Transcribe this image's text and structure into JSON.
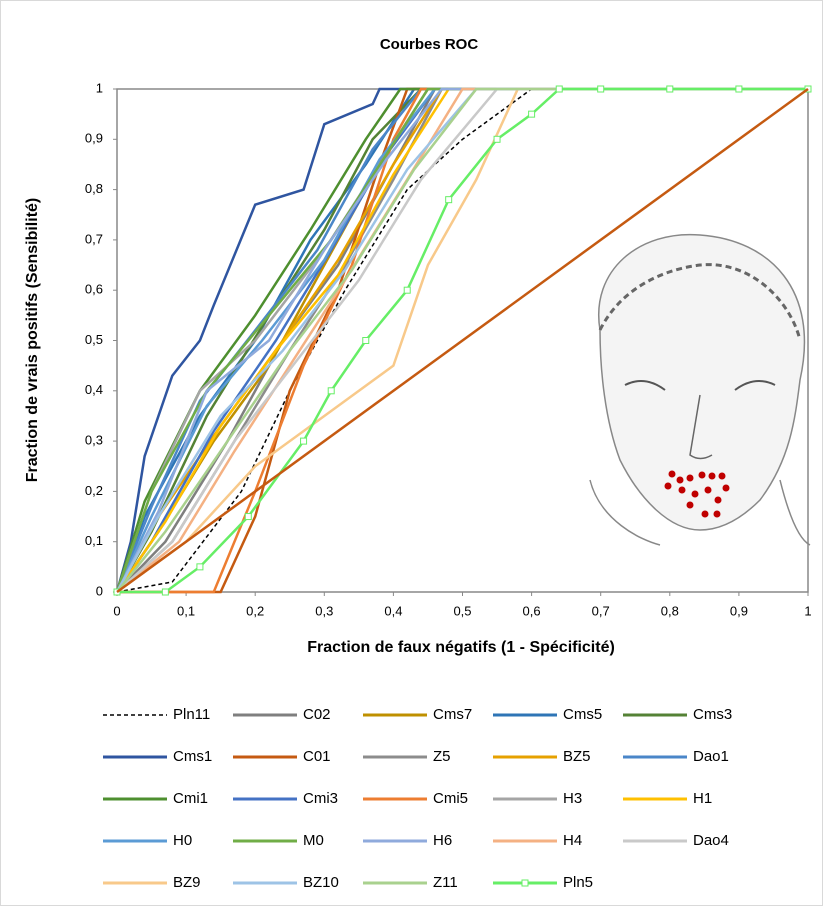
{
  "chart_data": {
    "type": "line",
    "title": "Courbes ROC",
    "xlabel": "Fraction de faux négatifs (1 - Spécificité)",
    "ylabel": "Fraction de vrais positifs (Sensibilité)",
    "xlim": [
      0,
      1
    ],
    "ylim": [
      0,
      1
    ],
    "xticks": [
      0,
      {
        "value": 0.1,
        "label": "0,1"
      },
      {
        "value": 0.2,
        "label": "0,2"
      },
      {
        "value": 0.3,
        "label": "0,3"
      },
      {
        "value": 0.4,
        "label": "0,4"
      },
      {
        "value": 0.5,
        "label": "0,5"
      },
      {
        "value": 0.6,
        "label": "0,6"
      },
      {
        "value": 0.7,
        "label": "0,7"
      },
      {
        "value": 0.8,
        "label": "0,8"
      },
      {
        "value": 0.9,
        "label": "0,9"
      },
      1
    ],
    "yticks": [
      0,
      {
        "value": 0.1,
        "label": "0,1"
      },
      {
        "value": 0.2,
        "label": "0,2"
      },
      {
        "value": 0.3,
        "label": "0,3"
      },
      {
        "value": 0.4,
        "label": "0,4"
      },
      {
        "value": 0.5,
        "label": "0,5"
      },
      {
        "value": 0.6,
        "label": "0,6"
      },
      {
        "value": 0.7,
        "label": "0,7"
      },
      {
        "value": 0.8,
        "label": "0,8"
      },
      {
        "value": 0.9,
        "label": "0,9"
      },
      1
    ],
    "reference_line": {
      "x": [
        0,
        1
      ],
      "values": [
        0,
        1
      ],
      "color": "#c55a11"
    },
    "series": [
      {
        "name": "Pln11",
        "color": "#000000",
        "style": "dashed",
        "x": [
          0,
          0.08,
          0.18,
          0.25,
          0.33,
          0.42,
          0.5,
          0.6,
          1
        ],
        "values": [
          0,
          0.02,
          0.2,
          0.4,
          0.6,
          0.8,
          0.9,
          1,
          1
        ]
      },
      {
        "name": "C02",
        "color": "#7f7f7f",
        "x": [
          0,
          0.07,
          0.16,
          0.24,
          0.32,
          0.4,
          0.46,
          1
        ],
        "values": [
          0,
          0.1,
          0.3,
          0.5,
          0.65,
          0.85,
          1,
          1
        ]
      },
      {
        "name": "Cms7",
        "color": "#bf9000",
        "x": [
          0,
          0.06,
          0.14,
          0.22,
          0.3,
          0.38,
          0.45,
          1
        ],
        "values": [
          0,
          0.12,
          0.3,
          0.45,
          0.65,
          0.85,
          1,
          1
        ]
      },
      {
        "name": "Cms5",
        "color": "#2e75b6",
        "x": [
          0,
          0.04,
          0.12,
          0.2,
          0.28,
          0.36,
          0.43,
          1
        ],
        "values": [
          0,
          0.15,
          0.35,
          0.5,
          0.7,
          0.85,
          1,
          1
        ]
      },
      {
        "name": "Cms3",
        "color": "#548235",
        "x": [
          0,
          0.05,
          0.13,
          0.22,
          0.3,
          0.37,
          0.44,
          1
        ],
        "values": [
          0,
          0.12,
          0.35,
          0.55,
          0.72,
          0.9,
          1,
          1
        ]
      },
      {
        "name": "Cms1",
        "color": "#2f55a0",
        "x": [
          0,
          0.02,
          0.04,
          0.08,
          0.12,
          0.14,
          0.2,
          0.27,
          0.3,
          0.37,
          0.38,
          1
        ],
        "values": [
          0,
          0.1,
          0.27,
          0.43,
          0.5,
          0.57,
          0.77,
          0.8,
          0.93,
          0.97,
          1,
          1
        ]
      },
      {
        "name": "C01",
        "color": "#c55a11",
        "x": [
          0,
          0.15,
          0.2,
          0.25,
          0.32,
          0.38,
          0.42,
          1
        ],
        "values": [
          0,
          0,
          0.15,
          0.4,
          0.6,
          0.85,
          1,
          1
        ]
      },
      {
        "name": "Z5",
        "color": "#8c8c8c",
        "x": [
          0,
          0.08,
          0.17,
          0.25,
          0.33,
          0.4,
          0.47,
          1
        ],
        "values": [
          0,
          0.1,
          0.3,
          0.48,
          0.65,
          0.82,
          1,
          1
        ]
      },
      {
        "name": "BZ5",
        "color": "#e6a100",
        "x": [
          0,
          0.06,
          0.15,
          0.24,
          0.32,
          0.4,
          0.47,
          1
        ],
        "values": [
          0,
          0.15,
          0.33,
          0.5,
          0.66,
          0.85,
          1,
          1
        ]
      },
      {
        "name": "Dao1",
        "color": "#4a86c8",
        "x": [
          0,
          0.05,
          0.12,
          0.2,
          0.29,
          0.37,
          0.44,
          1
        ],
        "values": [
          0,
          0.17,
          0.38,
          0.52,
          0.68,
          0.88,
          1,
          1
        ]
      },
      {
        "name": "Cmi1",
        "color": "#4e8f2f",
        "x": [
          0,
          0.04,
          0.12,
          0.2,
          0.28,
          0.36,
          0.41,
          1
        ],
        "values": [
          0,
          0.18,
          0.4,
          0.55,
          0.72,
          0.9,
          1,
          1
        ]
      },
      {
        "name": "Cmi3",
        "color": "#4472c4",
        "x": [
          0,
          0.05,
          0.14,
          0.23,
          0.31,
          0.39,
          0.46,
          1
        ],
        "values": [
          0,
          0.1,
          0.32,
          0.5,
          0.68,
          0.87,
          1,
          1
        ]
      },
      {
        "name": "Cmi5",
        "color": "#ed7d31",
        "x": [
          0,
          0.14,
          0.2,
          0.27,
          0.34,
          0.4,
          0.44,
          1
        ],
        "values": [
          0,
          0,
          0.2,
          0.45,
          0.65,
          0.9,
          1,
          1
        ]
      },
      {
        "name": "H3",
        "color": "#a5a5a5",
        "x": [
          0,
          0.05,
          0.12,
          0.2,
          0.3,
          0.38,
          0.45,
          1
        ],
        "values": [
          0,
          0.2,
          0.4,
          0.5,
          0.68,
          0.85,
          1,
          1
        ]
      },
      {
        "name": "H1",
        "color": "#ffc000",
        "x": [
          0,
          0.07,
          0.15,
          0.23,
          0.32,
          0.4,
          0.48,
          1
        ],
        "values": [
          0,
          0.14,
          0.33,
          0.48,
          0.63,
          0.83,
          1,
          1
        ]
      },
      {
        "name": "H0",
        "color": "#5b9bd5",
        "x": [
          0,
          0.05,
          0.13,
          0.21,
          0.3,
          0.38,
          0.46,
          1
        ],
        "values": [
          0,
          0.15,
          0.37,
          0.5,
          0.66,
          0.86,
          1,
          1
        ]
      },
      {
        "name": "M0",
        "color": "#70ad47",
        "x": [
          0,
          0.05,
          0.13,
          0.22,
          0.31,
          0.39,
          0.45,
          1
        ],
        "values": [
          0,
          0.2,
          0.4,
          0.55,
          0.7,
          0.87,
          1,
          1
        ]
      },
      {
        "name": "H6",
        "color": "#8faadc",
        "x": [
          0,
          0.06,
          0.13,
          0.22,
          0.3,
          0.39,
          0.47,
          1
        ],
        "values": [
          0,
          0.16,
          0.4,
          0.5,
          0.68,
          0.86,
          1,
          1
        ]
      },
      {
        "name": "H4",
        "color": "#f4b183",
        "x": [
          0,
          0.09,
          0.17,
          0.25,
          0.33,
          0.42,
          0.5,
          1
        ],
        "values": [
          0,
          0.1,
          0.28,
          0.45,
          0.62,
          0.82,
          1,
          1
        ]
      },
      {
        "name": "Dao4",
        "color": "#c9c9c9",
        "x": [
          0,
          0.08,
          0.17,
          0.26,
          0.35,
          0.44,
          0.55,
          1
        ],
        "values": [
          0,
          0.1,
          0.3,
          0.46,
          0.62,
          0.82,
          1,
          1
        ]
      },
      {
        "name": "BZ9",
        "color": "#f8c98a",
        "x": [
          0,
          0.1,
          0.2,
          0.3,
          0.4,
          0.45,
          0.52,
          0.58,
          1
        ],
        "values": [
          0,
          0.1,
          0.25,
          0.35,
          0.45,
          0.65,
          0.82,
          1,
          1
        ]
      },
      {
        "name": "BZ10",
        "color": "#9dc3e6",
        "x": [
          0,
          0.06,
          0.15,
          0.24,
          0.33,
          0.42,
          0.52,
          1
        ],
        "values": [
          0,
          0.15,
          0.35,
          0.48,
          0.64,
          0.84,
          1,
          1
        ]
      },
      {
        "name": "Z11",
        "color": "#a9d18e",
        "x": [
          0,
          0.07,
          0.16,
          0.25,
          0.34,
          0.43,
          0.52,
          1
        ],
        "values": [
          0,
          0.12,
          0.3,
          0.48,
          0.64,
          0.84,
          1,
          1
        ]
      },
      {
        "name": "Pln5",
        "color": "#66ee66",
        "marker": "square",
        "x": [
          0,
          0.07,
          0.12,
          0.19,
          0.27,
          0.31,
          0.36,
          0.42,
          0.48,
          0.55,
          0.6,
          0.64,
          0.7,
          0.8,
          0.9,
          1
        ],
        "values": [
          0,
          0,
          0.05,
          0.15,
          0.3,
          0.4,
          0.5,
          0.6,
          0.78,
          0.9,
          0.95,
          1,
          1,
          1,
          1,
          1
        ]
      }
    ]
  }
}
